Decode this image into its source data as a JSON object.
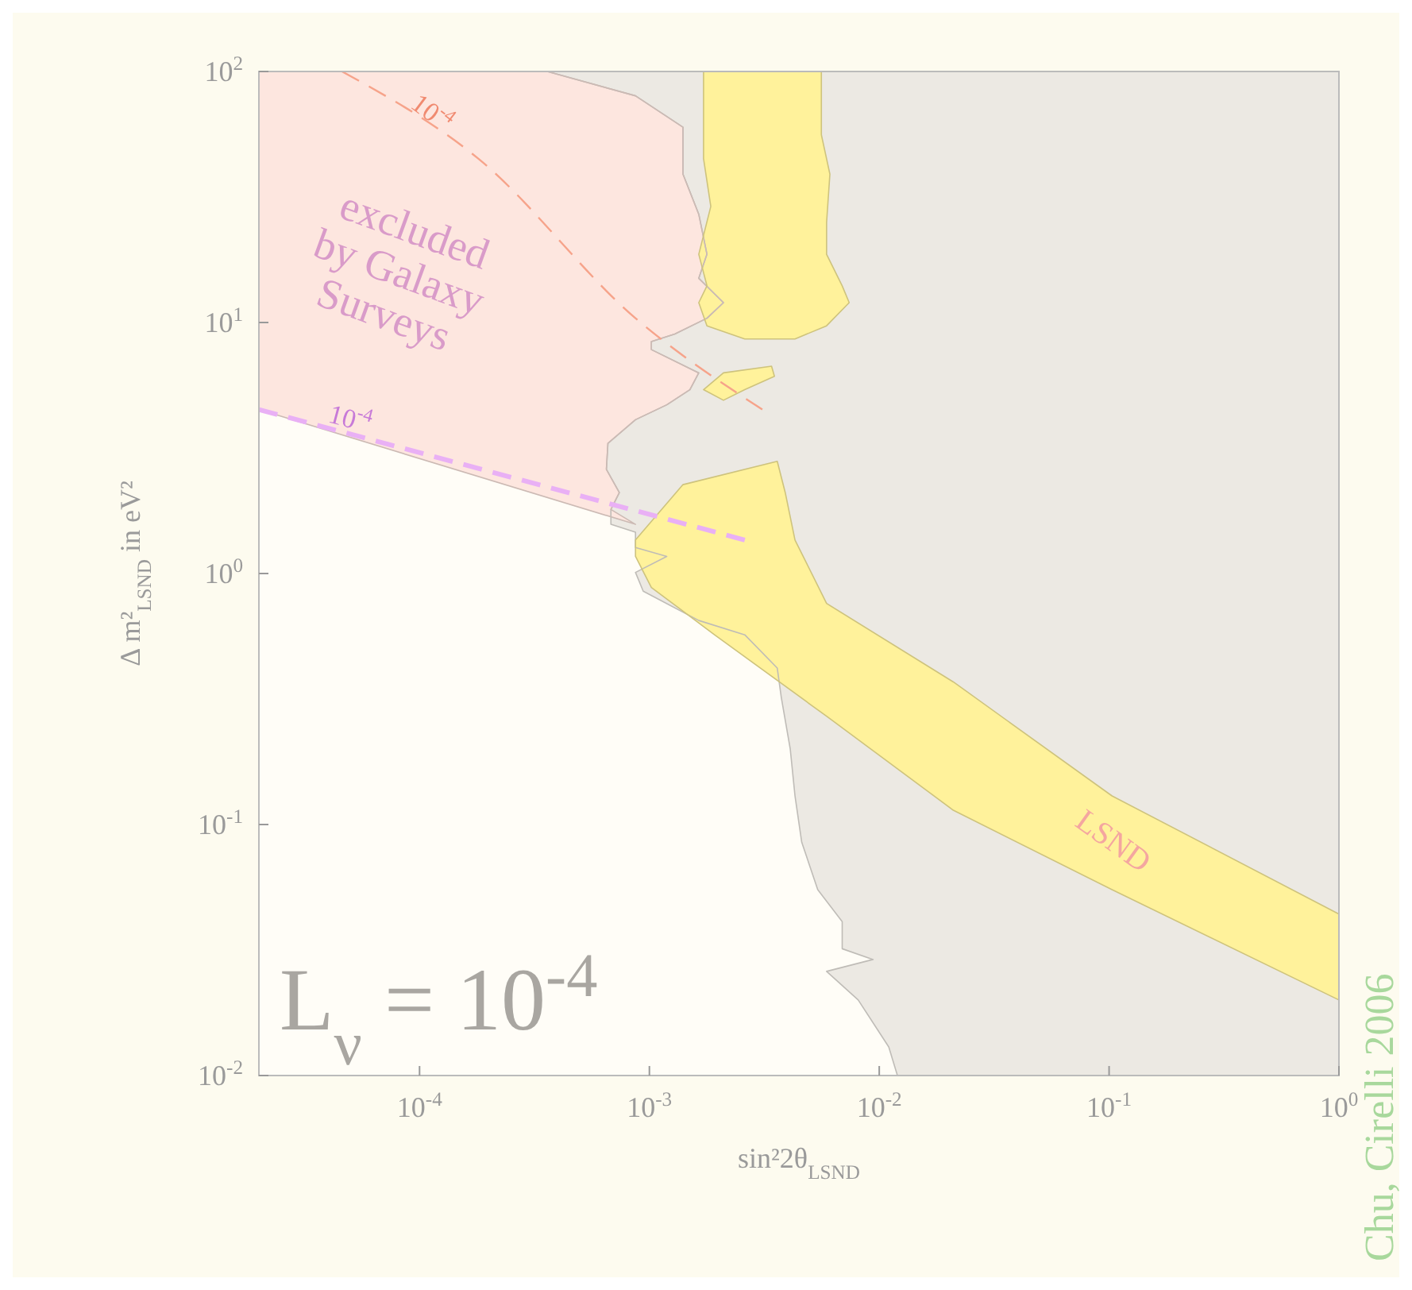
{
  "chart_data": {
    "type": "area",
    "xlabel": "sin²2θ$_{LSND}$",
    "ylabel": "Δ m²$_{LSND}$  in eV²",
    "log": "xy",
    "grid": false,
    "legend": false,
    "xlim": [
      2e-05,
      1
    ],
    "ylim": [
      0.01,
      100
    ],
    "xticks": [
      {
        "value": 0.0001,
        "label": "10$^{-4}$"
      },
      {
        "value": 0.001,
        "label": "10$^{-3}$"
      },
      {
        "value": 0.01,
        "label": "10$^{-2}$"
      },
      {
        "value": 0.1,
        "label": "10$^{-1}$"
      },
      {
        "value": 1,
        "label": "10$^{0}$"
      }
    ],
    "yticks": [
      {
        "value": 0.01,
        "label": "10$^{-2}$"
      },
      {
        "value": 0.1,
        "label": "10$^{-1}$"
      },
      {
        "value": 1,
        "label": "10$^{0}$"
      },
      {
        "value": 10,
        "label": "10$^{1}$"
      },
      {
        "value": 100,
        "label": "10$^{2}$"
      }
    ],
    "series": [
      {
        "color": "#ece9e3",
        "x": [
          0.00036,
          0.00087,
          0.0014,
          0.0014,
          0.00164,
          0.00178,
          0.00164,
          0.0021,
          0.00178,
          0.00129,
          0.00102,
          0.00102,
          0.00164,
          0.0015,
          0.00119,
          0.00087,
          0.00066,
          0.00065,
          0.00074,
          0.00068,
          0.00068,
          0.00087,
          0.00087,
          0.00119,
          0.00087,
          0.00094,
          0.00164,
          0.0026,
          0.0036,
          0.00375,
          0.0041,
          0.0043,
          0.0046,
          0.0054,
          0.0069,
          0.0069,
          0.0094,
          0.0059,
          0.0081,
          0.011,
          0.012,
          1,
          1
        ],
        "values": [
          100,
          80,
          60,
          39,
          27,
          18.7,
          15,
          12,
          10.4,
          9,
          8.4,
          7.8,
          6.3,
          5.4,
          4.7,
          4.1,
          3.3,
          2.6,
          2.1,
          1.8,
          1.57,
          1.46,
          1.27,
          1.17,
          1.01,
          0.85,
          0.65,
          0.57,
          0.42,
          0.32,
          0.2,
          0.13,
          0.085,
          0.055,
          0.041,
          0.032,
          0.029,
          0.026,
          0.02,
          0.013,
          0.01,
          0.01,
          100
        ]
      },
      {
        "color": "#fde6df",
        "x": [
          2e-05,
          0.00036,
          0.00087,
          0.0014,
          0.0014,
          0.00164,
          0.00178,
          0.00164,
          0.0021,
          0.00178,
          0.00129,
          0.00102,
          0.00102,
          0.00164,
          0.0015,
          0.00119,
          0.00087,
          0.00066,
          0.00065,
          0.00074,
          0.00068,
          0.00087,
          2e-05
        ],
        "values": [
          100,
          100,
          80,
          60,
          39,
          27,
          18.7,
          15,
          12,
          10.4,
          9,
          8.4,
          7.8,
          6.3,
          5.4,
          4.7,
          4.1,
          3.3,
          2.6,
          2.1,
          1.8,
          1.57,
          4.5
        ]
      },
      {
        "color": "#fff29b",
        "x": [
          0.00172,
          0.0056,
          0.0056,
          0.0061,
          0.0059,
          0.0059,
          0.0069,
          0.0074,
          0.0059,
          0.0043,
          0.0026,
          0.00178,
          0.00164,
          0.00178,
          0.00164,
          0.00185,
          0.00172
        ],
        "values": [
          100,
          100,
          56,
          39,
          25,
          18.7,
          14,
          12,
          9.7,
          8.6,
          8.6,
          9.7,
          12,
          14,
          18.7,
          29,
          45
        ]
      },
      {
        "color": "#fff29b",
        "x": [
          0.00172,
          0.0021,
          0.0034,
          0.0035,
          0.0026,
          0.0021
        ],
        "values": [
          5.4,
          6.3,
          6.7,
          6.1,
          5.4,
          4.9
        ]
      },
      {
        "name": "LSND",
        "color": "#fff29b",
        "x": [
          0.00087,
          0.0014,
          0.0036,
          0.0039,
          0.0043,
          0.0059,
          0.021,
          0.103,
          1,
          1,
          0.103,
          0.021,
          0.0059,
          0.00192,
          0.00102,
          0.00087
        ],
        "values": [
          1.36,
          2.26,
          2.8,
          2.1,
          1.36,
          0.76,
          0.37,
          0.13,
          0.044,
          0.02,
          0.055,
          0.114,
          0.27,
          0.57,
          0.88,
          1.17
        ]
      },
      {
        "type": "line",
        "color": "#f6a38a",
        "line_style": "dashed",
        "x": [
          4.6e-05,
          0.00018,
          0.00087,
          0.0031
        ],
        "values": [
          100,
          45,
          10.4,
          4.5
        ]
      },
      {
        "type": "line",
        "color": "#e9b0f5",
        "line_style": "dashed",
        "x": [
          2e-05,
          0.0026
        ],
        "values": [
          4.5,
          1.36
        ]
      }
    ],
    "annotations": [
      "excluded\nby Galaxy\nSurveys",
      "L$_{ν}$ = 10$^{-4}$",
      "Chu, Cirelli 2006",
      {
        "text": "10$^{-4}$",
        "x": 8.7e-05,
        "y": 69
      },
      {
        "text": "10$^{-4}$",
        "x": 3.9e-05,
        "y": 3.8
      }
    ]
  }
}
